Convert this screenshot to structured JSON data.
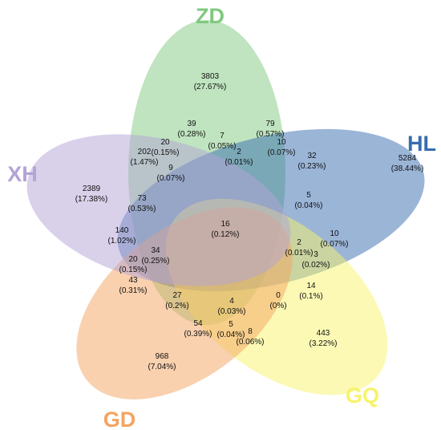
{
  "sets": [
    {
      "name": "ZD",
      "color": "#7fc97f"
    },
    {
      "name": "HL",
      "color": "#386cb0"
    },
    {
      "name": "GQ",
      "color": "#f7f36a"
    },
    {
      "name": "GD",
      "color": "#f4a460"
    },
    {
      "name": "XH",
      "color": "#b3a3d6"
    }
  ],
  "regions": [
    {
      "count": "3803",
      "percent": "(27.67%)"
    },
    {
      "count": "5284",
      "percent": "(38.44%)"
    },
    {
      "count": "443",
      "percent": "(3.22%)"
    },
    {
      "count": "968",
      "percent": "(7.04%)"
    },
    {
      "count": "2389",
      "percent": "(17.38%)"
    },
    {
      "count": "39",
      "percent": "(0.28%)"
    },
    {
      "count": "79",
      "percent": "(0.57%)"
    },
    {
      "count": "7",
      "percent": "(0.05%)"
    },
    {
      "count": "20",
      "percent": "(0.15%)"
    },
    {
      "count": "10",
      "percent": "(0.07%)"
    },
    {
      "count": "202",
      "percent": "(1.47%)"
    },
    {
      "count": "2",
      "percent": "(0.01%)"
    },
    {
      "count": "32",
      "percent": "(0.23%)"
    },
    {
      "count": "9",
      "percent": "(0.07%)"
    },
    {
      "count": "73",
      "percent": "(0.53%)"
    },
    {
      "count": "5",
      "percent": "(0.04%)"
    },
    {
      "count": "16",
      "percent": "(0.12%)"
    },
    {
      "count": "140",
      "percent": "(1.02%)"
    },
    {
      "count": "10",
      "percent": "(0.07%)"
    },
    {
      "count": "34",
      "percent": "(0.25%)"
    },
    {
      "count": "2",
      "percent": "(0.01%)"
    },
    {
      "count": "3",
      "percent": "(0.02%)"
    },
    {
      "count": "20",
      "percent": "(0.15%)"
    },
    {
      "count": "43",
      "percent": "(0.31%)"
    },
    {
      "count": "14",
      "percent": "(0.1%)"
    },
    {
      "count": "27",
      "percent": "(0.2%)"
    },
    {
      "count": "4",
      "percent": "(0.03%)"
    },
    {
      "count": "0",
      "percent": "(0%)"
    },
    {
      "count": "54",
      "percent": "(0.39%)"
    },
    {
      "count": "5",
      "percent": "(0.04%)"
    },
    {
      "count": "8",
      "percent": "(0.06%)"
    }
  ]
}
